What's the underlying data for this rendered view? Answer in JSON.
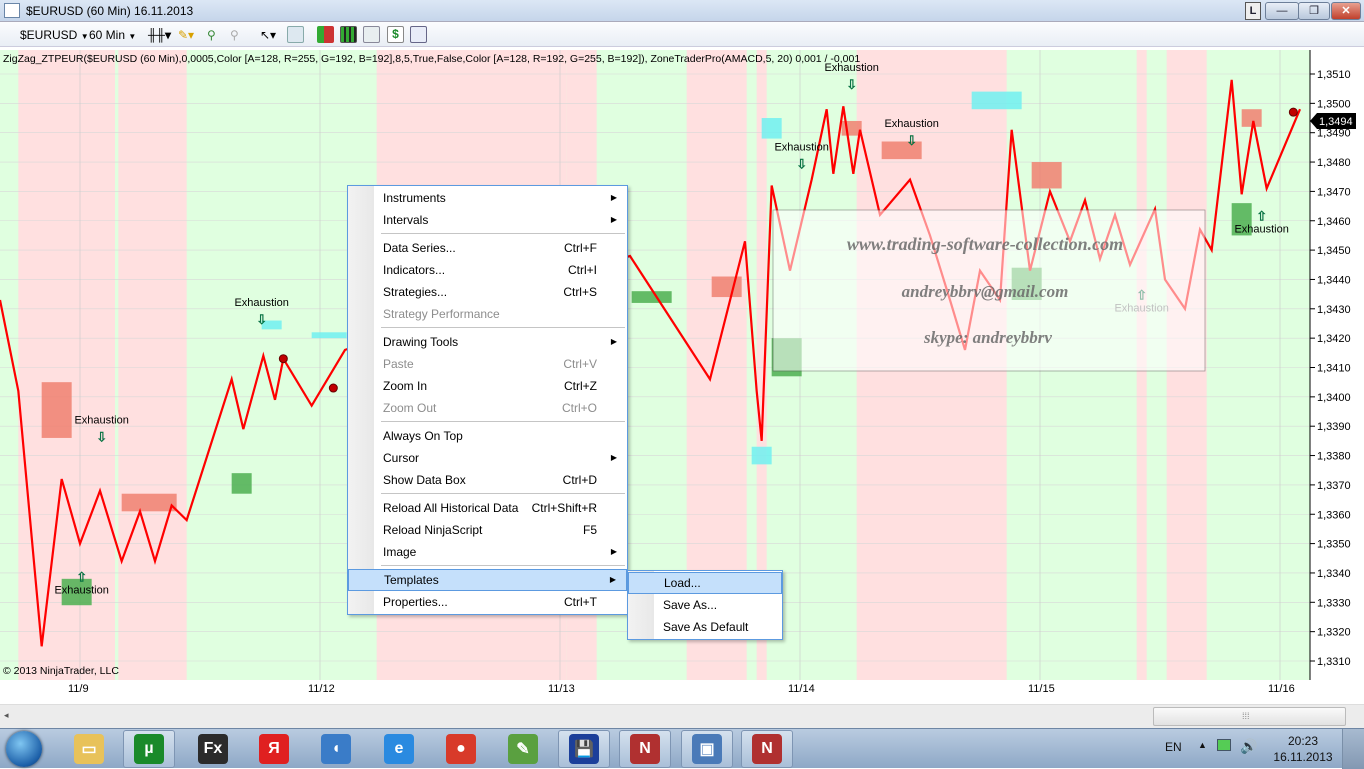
{
  "window": {
    "title": "$EURUSD (60 Min)  16.11.2013",
    "buttons": {
      "l": "L",
      "minimize": "—",
      "maximize": "❐",
      "close": "✕"
    }
  },
  "toolbar": {
    "instrument": "$EURUSD",
    "interval": "60 Min"
  },
  "chart": {
    "indicator_text": "ZigZag_ZTPEUR($EURUSD (60 Min),0,0005,Color [A=128, R=255, G=192, B=192],8,5,True,False,Color [A=128, R=192, G=255, B=192]), ZoneTraderPro(AMACD,5, 20) 0,001  / -0,001",
    "copyright": "© 2013 NinjaTrader, LLC",
    "current_price": "1,3494",
    "colors": {
      "up_zone": "#e0ffe0",
      "down_zone": "#ffe0e0",
      "zigzag": "#ff0000",
      "supply": "#f08070",
      "demand": "#4caf50",
      "cyan": "#70f0f0"
    },
    "price_ticks": [
      "1,3510",
      "1,3500",
      "1,3490",
      "1,3480",
      "1,3470",
      "1,3460",
      "1,3450",
      "1,3440",
      "1,3430",
      "1,3420",
      "1,3410",
      "1,3400",
      "1,3390",
      "1,3380",
      "1,3370",
      "1,3360",
      "1,3350",
      "1,3340",
      "1,3330",
      "1,3320",
      "1,3310"
    ],
    "date_ticks": [
      "11/9",
      "11/12",
      "11/13",
      "11/14",
      "11/15",
      "11/16"
    ],
    "price_range": [
      1.331,
      1.351
    ],
    "down_zones": [
      [
        "11/8 17:50",
        "11/9 03:30"
      ],
      [
        "11/9 03:50",
        "11/9 10:40"
      ],
      [
        "11/12 05:40",
        "11/13 00:40"
      ],
      [
        "11/13 00:40",
        "11/13 03:40"
      ],
      [
        "11/13 12:40",
        "11/13 18:40"
      ],
      [
        "11/13 19:40",
        "11/13 20:40"
      ],
      [
        "11/14 05:40",
        "11/14 20:40"
      ],
      [
        "11/15 09:40",
        "11/15 10:40"
      ],
      [
        "11/15 12:40",
        "11/15 16:40"
      ]
    ],
    "zigzag": [
      [
        "11/8 16:00",
        1.3433
      ],
      [
        "11/8 17:50",
        1.3402
      ],
      [
        "11/8 20:10",
        1.3315
      ],
      [
        "11/8 22:10",
        1.3372
      ],
      [
        "11/9 00:00",
        1.335
      ],
      [
        "11/9 02:00",
        1.3368
      ],
      [
        "11/9 04:10",
        1.3344
      ],
      [
        "11/9 06:00",
        1.3361
      ],
      [
        "11/9 07:30",
        1.3344
      ],
      [
        "11/9 09:10",
        1.3363
      ],
      [
        "11/9 10:40",
        1.3358
      ],
      [
        "11/9 15:10",
        1.3406
      ],
      [
        "11/9 16:20",
        1.3389
      ],
      [
        "11/9 18:20",
        1.3414
      ],
      [
        "11/9 19:30",
        1.3399
      ],
      [
        "11/9 20:20",
        1.3413
      ],
      [
        "11/9 23:10",
        1.3397
      ],
      [
        "11/12 02:30",
        1.3416
      ],
      [
        "11/13 07:00",
        1.3448
      ],
      [
        "11/13 15:00",
        1.3406
      ],
      [
        "11/13 18:30",
        1.3453
      ],
      [
        "11/13 19:40",
        1.3402
      ],
      [
        "11/13 20:10",
        1.3385
      ],
      [
        "11/13 21:10",
        1.3472
      ],
      [
        "11/13 23:00",
        1.3443
      ],
      [
        "11/14 01:10",
        1.3474
      ],
      [
        "11/14 02:40",
        1.3498
      ],
      [
        "11/14 03:20",
        1.3476
      ],
      [
        "11/14 04:20",
        1.3499
      ],
      [
        "11/14 05:20",
        1.3476
      ],
      [
        "11/14 06:00",
        1.3491
      ],
      [
        "11/14 08:00",
        1.3462
      ],
      [
        "11/14 11:00",
        1.3474
      ],
      [
        "11/14 13:00",
        1.3455
      ],
      [
        "11/14 15:00",
        1.3433
      ],
      [
        "11/14 16:30",
        1.3416
      ],
      [
        "11/14 18:00",
        1.3443
      ],
      [
        "11/14 20:00",
        1.3433
      ],
      [
        "11/14 21:10",
        1.3491
      ],
      [
        "11/14 23:00",
        1.3443
      ],
      [
        "11/15 01:00",
        1.347
      ],
      [
        "11/15 03:00",
        1.3453
      ],
      [
        "11/15 04:30",
        1.3467
      ],
      [
        "11/15 06:00",
        1.3447
      ],
      [
        "11/15 07:30",
        1.3462
      ],
      [
        "11/15 09:00",
        1.3445
      ],
      [
        "11/15 11:30",
        1.3464
      ],
      [
        "11/15 12:30",
        1.344
      ],
      [
        "11/15 14:30",
        1.343
      ],
      [
        "11/15 16:00",
        1.3457
      ],
      [
        "11/15 17:10",
        1.345
      ],
      [
        "11/15 19:10",
        1.3508
      ],
      [
        "11/15 20:10",
        1.3469
      ],
      [
        "11/15 21:20",
        1.3494
      ],
      [
        "11/15 22:40",
        1.3471
      ],
      [
        "11/16 02:00",
        1.3498
      ]
    ],
    "boxes": [
      {
        "kind": "supply",
        "t": [
          "11/8 20:10",
          "11/8 23:10"
        ],
        "p": [
          1.3386,
          1.3405
        ]
      },
      {
        "kind": "supply",
        "t": [
          "11/9 04:10",
          "11/9 09:40"
        ],
        "p": [
          1.3361,
          1.3367
        ]
      },
      {
        "kind": "supply",
        "t": [
          "11/13 15:10",
          "11/13 18:10"
        ],
        "p": [
          1.3434,
          1.3441
        ]
      },
      {
        "kind": "supply",
        "t": [
          "11/14 04:10",
          "11/14 06:10"
        ],
        "p": [
          1.3489,
          1.3494
        ]
      },
      {
        "kind": "supply",
        "t": [
          "11/14 08:10",
          "11/14 12:10"
        ],
        "p": [
          1.3481,
          1.3487
        ]
      },
      {
        "kind": "supply",
        "t": [
          "11/14 23:10",
          "11/15 02:10"
        ],
        "p": [
          1.3471,
          1.348
        ]
      },
      {
        "kind": "supply",
        "t": [
          "11/15 20:10",
          "11/15 22:10"
        ],
        "p": [
          1.3492,
          1.3498
        ]
      },
      {
        "kind": "demand",
        "t": [
          "11/8 22:10",
          "11/9 01:10"
        ],
        "p": [
          1.3329,
          1.3338
        ]
      },
      {
        "kind": "demand",
        "t": [
          "11/9 15:10",
          "11/9 17:10"
        ],
        "p": [
          1.3367,
          1.3374
        ]
      },
      {
        "kind": "demand",
        "t": [
          "11/13 07:10",
          "11/13 11:10"
        ],
        "p": [
          1.3432,
          1.3436
        ]
      },
      {
        "kind": "demand",
        "t": [
          "11/13 21:10",
          "11/14 00:10"
        ],
        "p": [
          1.3407,
          1.342
        ]
      },
      {
        "kind": "demand",
        "t": [
          "11/14 21:10",
          "11/15 00:10"
        ],
        "p": [
          1.3433,
          1.3444
        ]
      },
      {
        "kind": "demand",
        "t": [
          "11/15 19:10",
          "11/15 21:10"
        ],
        "p": [
          1.3455,
          1.3466
        ]
      },
      {
        "kind": "cyan",
        "t": [
          "11/13 20:10",
          "11/13 22:10"
        ],
        "p": [
          1.3488,
          1.3495
        ]
      },
      {
        "kind": "cyan",
        "t": [
          "11/14 17:10",
          "11/14 22:10"
        ],
        "p": [
          1.3498,
          1.3504
        ]
      },
      {
        "kind": "cyan",
        "t": [
          "11/13 19:10",
          "11/13 21:10"
        ],
        "p": [
          1.3377,
          1.3383
        ]
      },
      {
        "kind": "cyan",
        "t": [
          "11/9 23:10",
          "11/12 02:40"
        ],
        "p": [
          1.342,
          1.3422
        ]
      },
      {
        "kind": "cyan",
        "t": [
          "11/9 18:10",
          "11/9 20:10"
        ],
        "p": [
          1.3423,
          1.3426
        ]
      }
    ],
    "annotations": [
      {
        "text": "Exhaustion",
        "t": "11/9 18:10",
        "p": 1.3431,
        "arrow": "down"
      },
      {
        "text": "Exhaustion",
        "t": "11/9 02:10",
        "p": 1.3391,
        "arrow": "down"
      },
      {
        "text": "Exhaustion",
        "t": "11/9 00:10",
        "p": 1.3333,
        "arrow": "up"
      },
      {
        "text": "Exhaustion",
        "t": "11/14 00:10",
        "p": 1.3484,
        "arrow": "down"
      },
      {
        "text": "Exhaustion",
        "t": "11/14 05:10",
        "p": 1.3511,
        "arrow": "down"
      },
      {
        "text": "Exhaustion",
        "t": "11/14 11:10",
        "p": 1.3492,
        "arrow": "down"
      },
      {
        "text": "Exhaustion",
        "t": "11/15 10:10",
        "p": 1.3429,
        "arrow": "up"
      },
      {
        "text": "Exhaustion",
        "t": "11/15 22:10",
        "p": 1.3456,
        "arrow": "up"
      }
    ],
    "dots": [
      [
        "11/9 20:20",
        1.3413
      ],
      [
        "11/9 25:20",
        1.3403
      ],
      [
        "11/16 01:20",
        1.3497
      ]
    ],
    "watermark": [
      "www.trading-software-collection.com",
      "andreybbrv@gmail.com",
      "skype: andreybbrv"
    ]
  },
  "context_menu": {
    "items": [
      {
        "label": "Instruments",
        "submenu": true
      },
      {
        "label": "Intervals",
        "submenu": true
      },
      {
        "sep": true
      },
      {
        "label": "Data Series...",
        "shortcut": "Ctrl+F"
      },
      {
        "label": "Indicators...",
        "shortcut": "Ctrl+I"
      },
      {
        "label": "Strategies...",
        "shortcut": "Ctrl+S"
      },
      {
        "label": "Strategy Performance",
        "disabled": true
      },
      {
        "sep": true
      },
      {
        "label": "Drawing Tools",
        "submenu": true
      },
      {
        "label": "Paste",
        "shortcut": "Ctrl+V",
        "disabled": true
      },
      {
        "label": "Zoom In",
        "shortcut": "Ctrl+Z"
      },
      {
        "label": "Zoom Out",
        "shortcut": "Ctrl+O",
        "disabled": true
      },
      {
        "sep": true
      },
      {
        "label": "Always On Top"
      },
      {
        "label": "Cursor",
        "submenu": true
      },
      {
        "label": "Show Data Box",
        "shortcut": "Ctrl+D"
      },
      {
        "sep": true
      },
      {
        "label": "Reload All Historical Data",
        "shortcut": "Ctrl+Shift+R"
      },
      {
        "label": "Reload NinjaScript",
        "shortcut": "F5"
      },
      {
        "label": "Image",
        "submenu": true
      },
      {
        "sep": true
      },
      {
        "label": "Templates",
        "submenu": true,
        "highlighted": true
      },
      {
        "label": "Properties...",
        "shortcut": "Ctrl+T"
      }
    ],
    "templates_submenu": [
      {
        "label": "Load...",
        "highlighted": true
      },
      {
        "label": "Save As..."
      },
      {
        "label": "Save As Default"
      }
    ]
  },
  "taskbar": {
    "apps": [
      {
        "name": "explorer",
        "glyph": "▭",
        "color": "#e8c25a"
      },
      {
        "name": "utorrent",
        "glyph": "µ",
        "color": "#1a8a2a",
        "active": true
      },
      {
        "name": "fx",
        "glyph": "Fx",
        "color": "#2b2b2b"
      },
      {
        "name": "yandex",
        "glyph": "Я",
        "color": "#e02020"
      },
      {
        "name": "audio",
        "glyph": "◖",
        "color": "#3a7cc8"
      },
      {
        "name": "internet-explorer",
        "glyph": "e",
        "color": "#2a8ae0"
      },
      {
        "name": "chrome",
        "glyph": "●",
        "color": "#d83a2a"
      },
      {
        "name": "editor",
        "glyph": "✎",
        "color": "#5aa040"
      },
      {
        "name": "save",
        "glyph": "💾",
        "color": "#1c3f9a",
        "active": true
      },
      {
        "name": "ninjatrader",
        "glyph": "N",
        "color": "#b03030",
        "active": true
      },
      {
        "name": "network-monitor",
        "glyph": "▣",
        "color": "#4a7ab8",
        "active": true
      },
      {
        "name": "ninjatrader-2",
        "glyph": "N",
        "color": "#b03030",
        "active": true
      }
    ],
    "language": "EN",
    "time": "20:23",
    "date": "16.11.2013"
  }
}
